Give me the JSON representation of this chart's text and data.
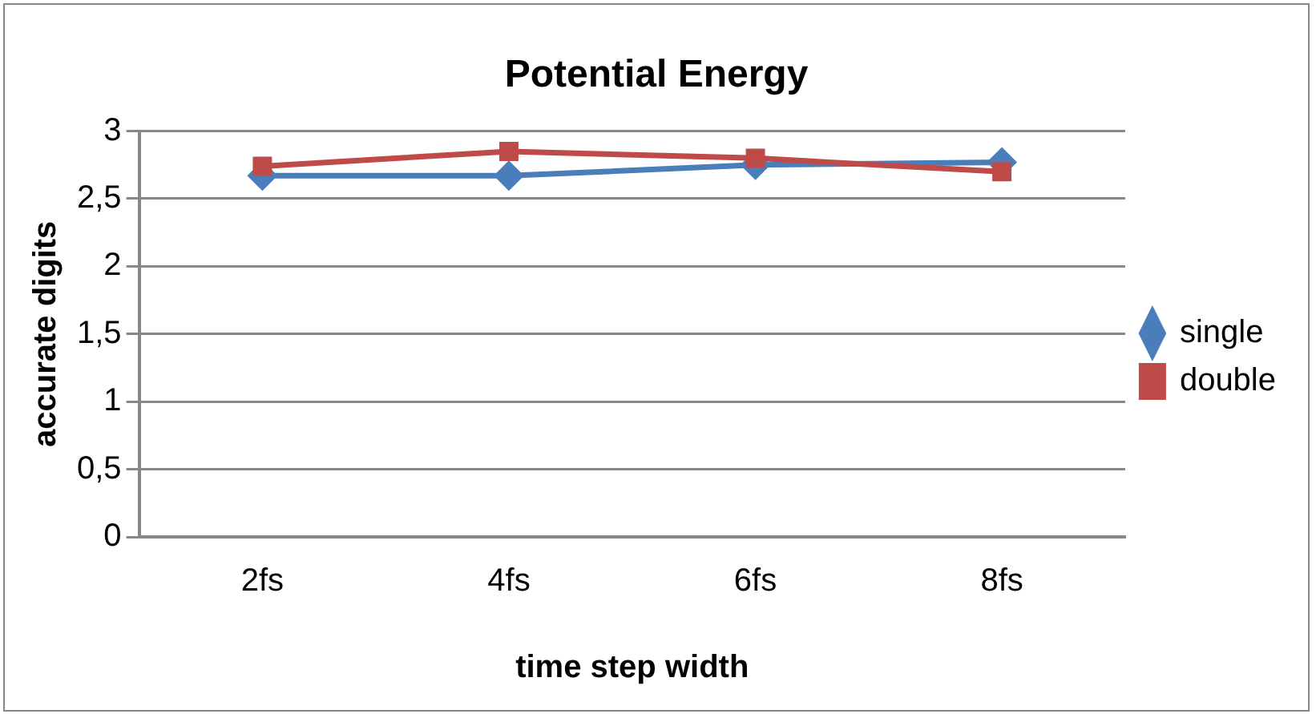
{
  "chart_data": {
    "type": "line",
    "title": "Potential Energy",
    "xlabel": "time step width",
    "ylabel": "accurate digits",
    "categories": [
      "2fs",
      "4fs",
      "6fs",
      "8fs"
    ],
    "series": [
      {
        "name": "single",
        "color": "#4a7ebb",
        "values": [
          2.67,
          2.67,
          2.75,
          2.77
        ],
        "marker": "diamond"
      },
      {
        "name": "double",
        "color": "#be4b48",
        "values": [
          2.74,
          2.85,
          2.8,
          2.7
        ],
        "marker": "square"
      }
    ],
    "ylim": [
      0,
      3
    ],
    "yticks": [
      {
        "value": 0,
        "label": "0"
      },
      {
        "value": 0.5,
        "label": "0,5"
      },
      {
        "value": 1,
        "label": "1"
      },
      {
        "value": 1.5,
        "label": "1,5"
      },
      {
        "value": 2,
        "label": "2"
      },
      {
        "value": 2.5,
        "label": "2,5"
      },
      {
        "value": 3,
        "label": "3"
      }
    ],
    "grid": "y",
    "legend": "right"
  }
}
